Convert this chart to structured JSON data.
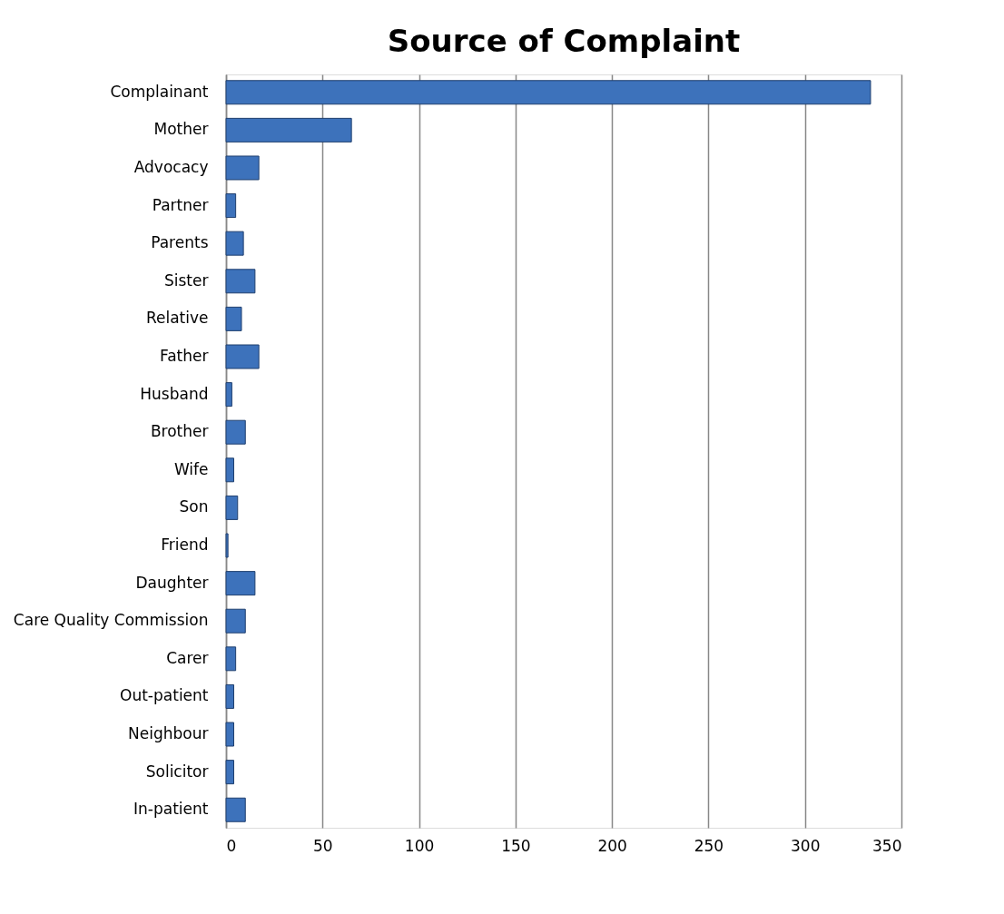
{
  "chart_data": {
    "type": "bar",
    "orientation": "horizontal",
    "title": "Source of Complaint",
    "categories": [
      "Complainant",
      "Mother",
      "Advocacy",
      "Partner",
      "Parents",
      "Sister",
      "Relative",
      "Father",
      "Husband",
      "Brother",
      "Wife",
      "Son",
      "Friend",
      "Daughter",
      "Care Quality Commission",
      "Carer",
      "Out-patient",
      "Neighbour",
      "Solicitor",
      "In-patient"
    ],
    "values": [
      334,
      65,
      17,
      5,
      9,
      15,
      8,
      17,
      3,
      10,
      4,
      6,
      1,
      15,
      10,
      5,
      4,
      4,
      4,
      10
    ],
    "color": "#3d72bb",
    "xlim": [
      0,
      350
    ],
    "xticks": [
      0,
      50,
      100,
      150,
      200,
      250,
      300,
      350
    ],
    "grid": "x"
  }
}
